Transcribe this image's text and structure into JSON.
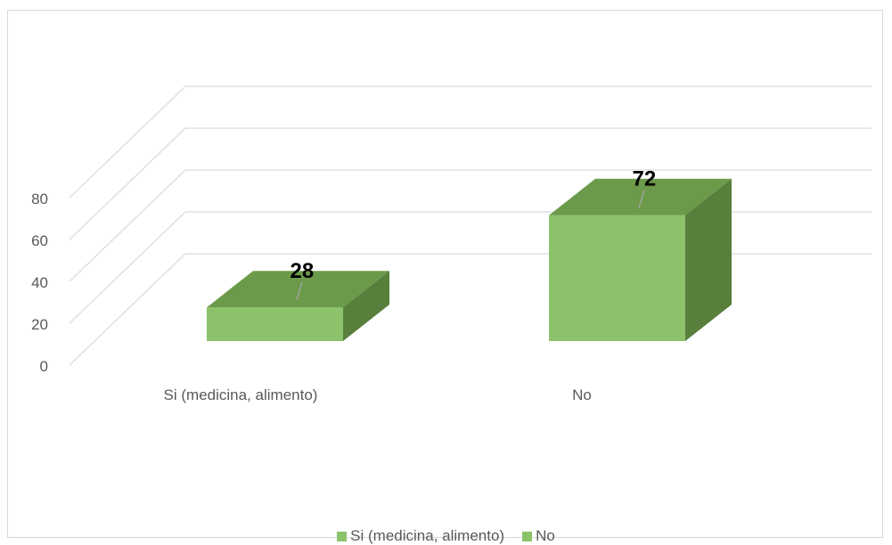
{
  "chart_data": {
    "type": "bar",
    "title": "",
    "xlabel": "",
    "ylabel": "",
    "categories": [
      "Si (medicina, alimento)",
      "No"
    ],
    "values": [
      28,
      72
    ],
    "data_labels": [
      "28",
      "72"
    ],
    "ylim": [
      0,
      80
    ],
    "yticks": [
      "0",
      "20",
      "40",
      "60",
      "80"
    ],
    "grid": true,
    "legend_position": "bottom",
    "legend": [
      {
        "label": "Si (medicina, alimento)",
        "color": "#8cc26a"
      },
      {
        "label": "No",
        "color": "#8cc26a"
      }
    ],
    "colors": {
      "front": "#8cc26a",
      "top": "#6b9a4a",
      "side": "#587f3c",
      "grid": "#d9d9d9",
      "axis_text": "#595959",
      "label_text": "#000000"
    }
  }
}
